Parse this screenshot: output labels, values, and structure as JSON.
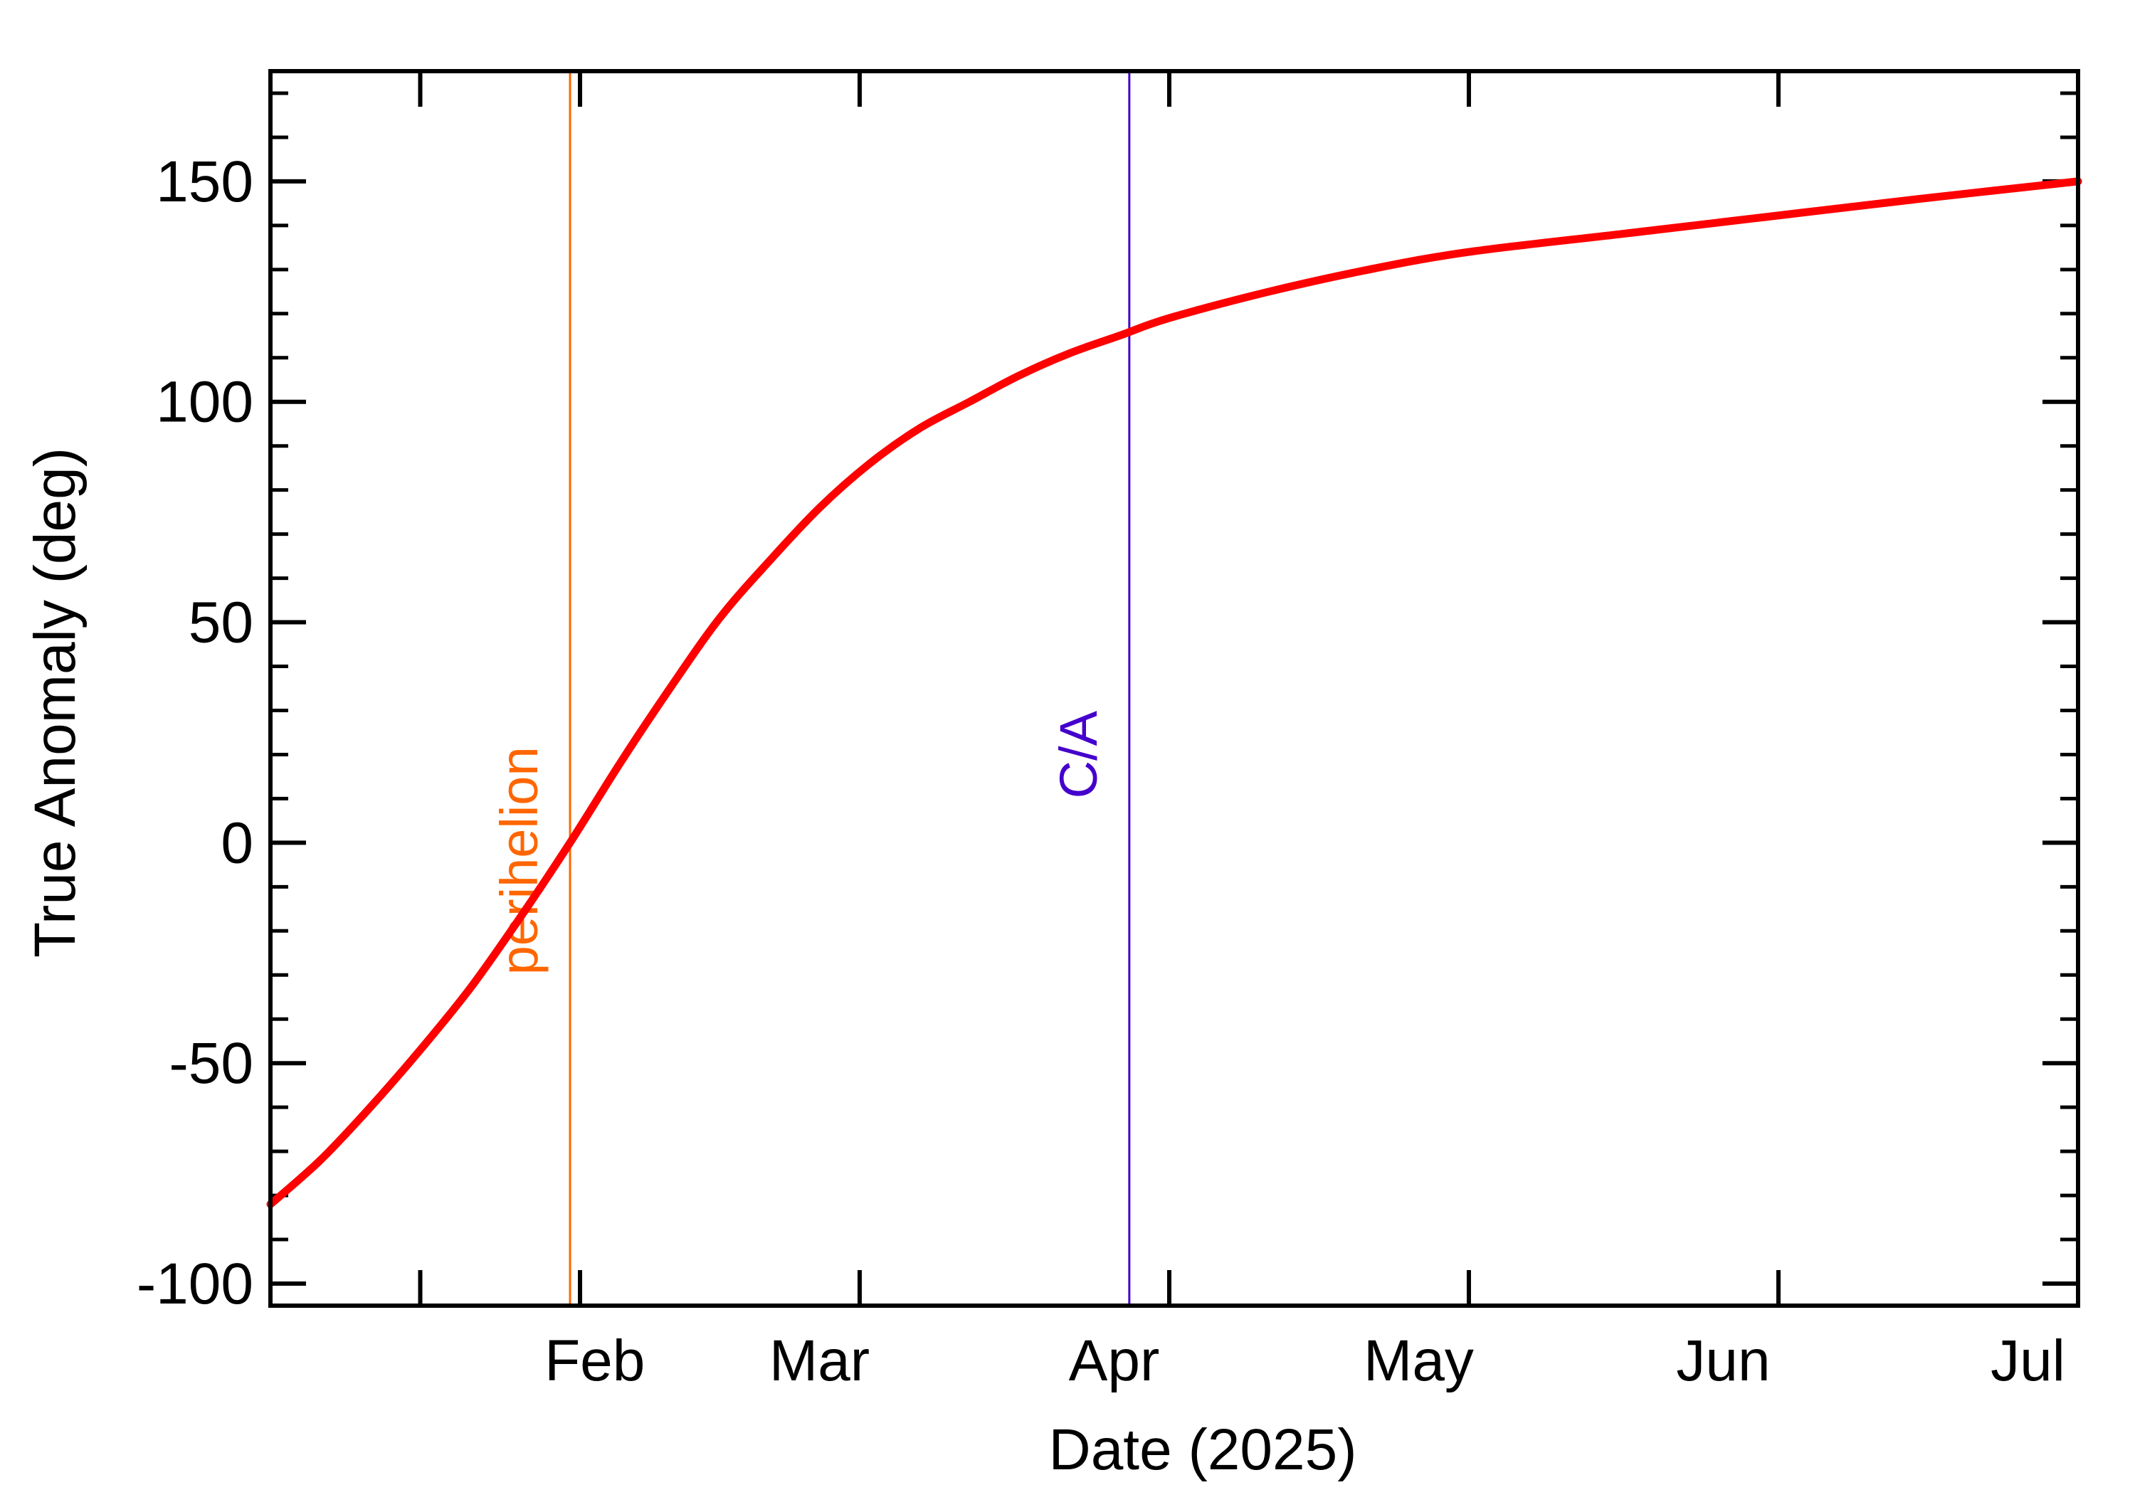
{
  "chart_data": {
    "type": "line",
    "title": "",
    "xlabel": "Date (2025)",
    "ylabel": "True Anomaly (deg)",
    "x_ticks": [
      {
        "label": "Feb",
        "date": "2025-02-01"
      },
      {
        "label": "Mar",
        "date": "2025-03-01"
      },
      {
        "label": "Apr",
        "date": "2025-04-01"
      },
      {
        "label": "May",
        "date": "2025-05-01"
      },
      {
        "label": "Jun",
        "date": "2025-06-01"
      },
      {
        "label": "Jul",
        "date": "2025-07-01"
      }
    ],
    "xlim": [
      "2025-01-01",
      "2025-07-01"
    ],
    "y_ticks": [
      -100,
      -50,
      0,
      50,
      100,
      150
    ],
    "ylim": [
      -105,
      175
    ],
    "grid": false,
    "series": [
      {
        "color": "#ff0000",
        "points": [
          {
            "x": "2025-01-01",
            "y": -82
          },
          {
            "x": "2025-01-06",
            "y": -72
          },
          {
            "x": "2025-01-11",
            "y": -60
          },
          {
            "x": "2025-01-16",
            "y": -47
          },
          {
            "x": "2025-01-21",
            "y": -33
          },
          {
            "x": "2025-01-26",
            "y": -17
          },
          {
            "x": "2025-01-31",
            "y": 0
          },
          {
            "x": "2025-02-05",
            "y": 18
          },
          {
            "x": "2025-02-10",
            "y": 35
          },
          {
            "x": "2025-02-15",
            "y": 51
          },
          {
            "x": "2025-02-20",
            "y": 64
          },
          {
            "x": "2025-02-25",
            "y": 76
          },
          {
            "x": "2025-03-02",
            "y": 86
          },
          {
            "x": "2025-03-07",
            "y": 94
          },
          {
            "x": "2025-03-12",
            "y": 100
          },
          {
            "x": "2025-03-17",
            "y": 106
          },
          {
            "x": "2025-03-22",
            "y": 111
          },
          {
            "x": "2025-03-27",
            "y": 115
          },
          {
            "x": "2025-04-01",
            "y": 119
          },
          {
            "x": "2025-04-11",
            "y": 125
          },
          {
            "x": "2025-04-21",
            "y": 130
          },
          {
            "x": "2025-05-01",
            "y": 134
          },
          {
            "x": "2025-05-16",
            "y": 138
          },
          {
            "x": "2025-05-31",
            "y": 142
          },
          {
            "x": "2025-06-15",
            "y": 146
          },
          {
            "x": "2025-07-01",
            "y": 150
          }
        ]
      }
    ],
    "markers": [
      {
        "label": "perihelion",
        "date": "2025-01-31",
        "color": "#ff6600"
      },
      {
        "label": "C/A",
        "date": "2025-03-28",
        "color": "#4400cc"
      }
    ]
  }
}
